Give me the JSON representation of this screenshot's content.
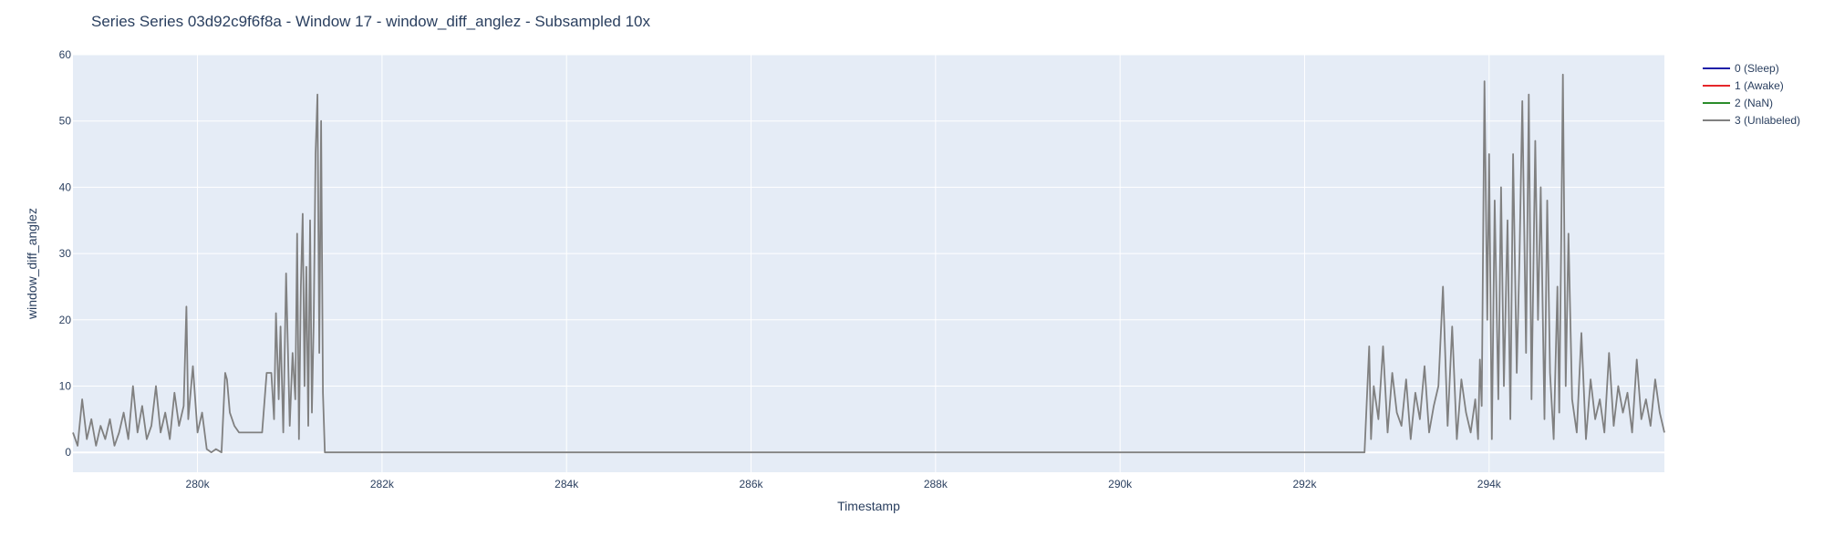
{
  "chart_data": {
    "type": "line",
    "title": "Series Series 03d92c9f6f8a - Window 17 - window_diff_anglez - Subsampled 10x",
    "xlabel": "Timestamp",
    "ylabel": "window_diff_anglez",
    "xlim": [
      278650,
      295900
    ],
    "ylim": [
      -3,
      60
    ],
    "x_ticks": [
      280000,
      282000,
      284000,
      286000,
      288000,
      290000,
      292000,
      294000
    ],
    "x_tick_labels": [
      "280k",
      "282k",
      "284k",
      "286k",
      "288k",
      "290k",
      "292k",
      "294k"
    ],
    "y_ticks": [
      0,
      10,
      20,
      30,
      40,
      50,
      60
    ],
    "y_tick_labels": [
      "0",
      "10",
      "20",
      "30",
      "40",
      "50",
      "60"
    ],
    "grid": true,
    "legend_position": "top-right",
    "series": [
      {
        "name": "0 (Sleep)",
        "color": "#1f1fa8",
        "x": [],
        "y": []
      },
      {
        "name": "1 (Awake)",
        "color": "#e6262a",
        "x": [],
        "y": []
      },
      {
        "name": "2 (NaN)",
        "color": "#2a8c2a",
        "x": [],
        "y": []
      },
      {
        "name": "3 (Unlabeled)",
        "color": "#808080",
        "x": [
          278650,
          278700,
          278750,
          278800,
          278850,
          278900,
          278950,
          279000,
          279050,
          279100,
          279150,
          279200,
          279250,
          279300,
          279350,
          279400,
          279450,
          279500,
          279550,
          279600,
          279650,
          279700,
          279750,
          279800,
          279850,
          279880,
          279900,
          279950,
          280000,
          280050,
          280100,
          280150,
          280200,
          280260,
          280300,
          280320,
          280350,
          280400,
          280450,
          280500,
          280550,
          280600,
          280650,
          280700,
          280750,
          280800,
          280830,
          280850,
          280880,
          280900,
          280930,
          280960,
          281000,
          281030,
          281060,
          281080,
          281100,
          281120,
          281140,
          281160,
          281180,
          281200,
          281220,
          281240,
          281260,
          281280,
          281300,
          281320,
          281340,
          281360,
          281380,
          281400,
          282000,
          284000,
          286000,
          288000,
          290000,
          292000,
          292650,
          292700,
          292720,
          292750,
          292800,
          292850,
          292900,
          292950,
          293000,
          293050,
          293100,
          293150,
          293200,
          293250,
          293300,
          293350,
          293400,
          293450,
          293500,
          293550,
          293600,
          293650,
          293700,
          293750,
          293800,
          293850,
          293880,
          293900,
          293920,
          293950,
          293980,
          294000,
          294030,
          294060,
          294100,
          294130,
          294160,
          294200,
          294230,
          294260,
          294300,
          294330,
          294360,
          294400,
          294430,
          294460,
          294500,
          294530,
          294560,
          294600,
          294630,
          294660,
          294700,
          294740,
          294760,
          294780,
          294800,
          294830,
          294860,
          294900,
          294950,
          295000,
          295050,
          295100,
          295150,
          295200,
          295250,
          295300,
          295350,
          295400,
          295450,
          295500,
          295550,
          295600,
          295650,
          295700,
          295750,
          295800,
          295850,
          295900
        ],
        "y": [
          3,
          1,
          8,
          2,
          5,
          1,
          4,
          2,
          5,
          1,
          3,
          6,
          2,
          10,
          3,
          7,
          2,
          4,
          10,
          3,
          6,
          2,
          9,
          4,
          7,
          22,
          5,
          13,
          3,
          6,
          0.5,
          0,
          0.5,
          0,
          12,
          11,
          6,
          4,
          3,
          3,
          3,
          3,
          3,
          3,
          12,
          12,
          5,
          21,
          8,
          19,
          3,
          27,
          4,
          15,
          8,
          33,
          2,
          25,
          36,
          10,
          28,
          4,
          35,
          6,
          20,
          45,
          54,
          15,
          50,
          9,
          0,
          0,
          0,
          0,
          0,
          0,
          0,
          0,
          0,
          16,
          2,
          10,
          5,
          16,
          3,
          12,
          6,
          4,
          11,
          2,
          9,
          5,
          13,
          3,
          7,
          10,
          25,
          4,
          19,
          2,
          11,
          6,
          3,
          8,
          2,
          14,
          7,
          56,
          20,
          45,
          2,
          38,
          8,
          40,
          10,
          35,
          5,
          45,
          12,
          30,
          53,
          15,
          54,
          8,
          47,
          20,
          40,
          5,
          38,
          12,
          2,
          25,
          6,
          30,
          57,
          10,
          33,
          8,
          3,
          18,
          2,
          11,
          5,
          8,
          3,
          15,
          4,
          10,
          6,
          9,
          3,
          14,
          5,
          8,
          4,
          11,
          6,
          3
        ]
      }
    ]
  }
}
